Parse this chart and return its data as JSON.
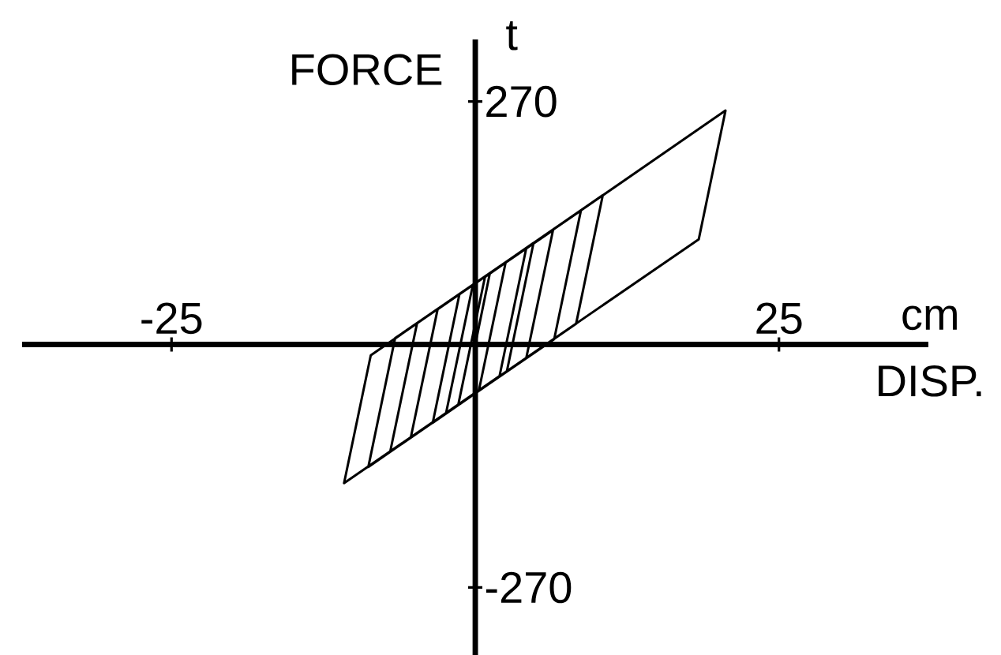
{
  "chart_data": {
    "type": "line",
    "xlabel": "DISP.",
    "ylabel": "FORCE",
    "annotations": [
      "t",
      "cm"
    ],
    "xlim": [
      -37.3,
      37.3
    ],
    "ylim": [
      -345,
      339
    ],
    "xticks": [
      -25,
      25
    ],
    "yticks": [
      -270,
      270
    ],
    "line_style": "solid",
    "color": "#000000",
    "x": [
      0,
      1.2,
      2.5,
      0.3,
      -1.4,
      0.8,
      4.2,
      2.0,
      -2.4,
      -0.2,
      4.8,
      2.6,
      -3.5,
      -1.3,
      6.4,
      4.2,
      -5.3,
      -3.1,
      20.6,
      18.4,
      -10.8,
      -8.6,
      10.5,
      8.3,
      -8.8,
      -6.6,
      8.7,
      6.5,
      -7.0,
      -4.8
    ],
    "values": [
      0,
      79,
      91,
      -51,
      -67,
      75,
      107,
      -35,
      -76,
      66,
      113,
      -30,
      -87,
      56,
      127,
      -15,
      -103,
      39,
      260,
      117,
      -154,
      -12,
      166,
      23,
      -136,
      7,
      149,
      6,
      -119,
      23
    ]
  }
}
